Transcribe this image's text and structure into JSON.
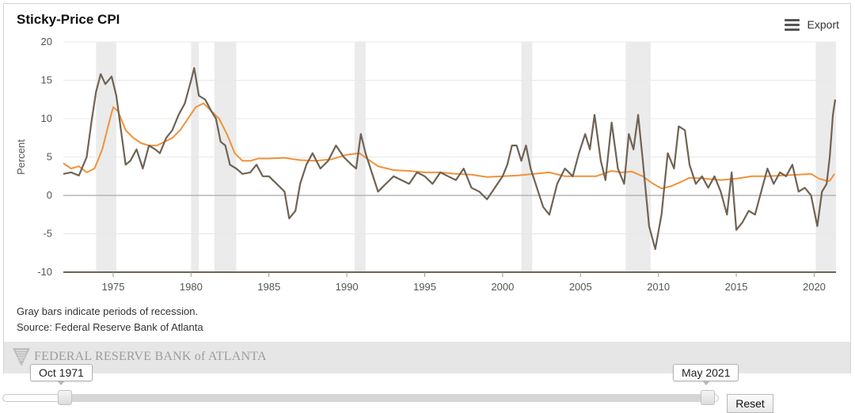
{
  "chart": {
    "title": "Sticky-Price CPI",
    "export_label": "Export",
    "note_recession": "Gray bars indicate periods of recession.",
    "note_source": "Source: Federal Reserve Bank of Atlanta"
  },
  "branding": {
    "logo_text": "FEDERAL RESERVE BANK of ATLANTA"
  },
  "range_selector": {
    "start_label": "Oct 1971",
    "end_label": "May 2021",
    "reset_label": "Reset"
  },
  "colors": {
    "series_core": "#f0923a",
    "series_flex": "#6e6354",
    "recession": "#ebebeb",
    "zero_line": "#b5b5b5",
    "axis": "#6e6354"
  },
  "chart_data": {
    "type": "line",
    "title": "Sticky-Price CPI",
    "xlabel": "",
    "ylabel": "Percent",
    "xlim": [
      1971.8,
      2021.4
    ],
    "ylim": [
      -10,
      20
    ],
    "yticks": [
      -10,
      -5,
      0,
      5,
      10,
      15,
      20
    ],
    "xticks": [
      1975,
      1980,
      1985,
      1990,
      1995,
      2000,
      2005,
      2010,
      2015,
      2020
    ],
    "grid": true,
    "legend": "none",
    "recessions": [
      [
        1973.9,
        1975.2
      ],
      [
        1980.0,
        1980.5
      ],
      [
        1981.5,
        1982.9
      ],
      [
        1990.5,
        1991.2
      ],
      [
        2001.2,
        2001.9
      ],
      [
        2007.9,
        2009.5
      ],
      [
        2020.1,
        2021.4
      ]
    ],
    "series": [
      {
        "x": [
          1971.8,
          1972.3,
          1972.8,
          1973.3,
          1973.8,
          1974.3,
          1974.8,
          1975.0,
          1975.3,
          1975.8,
          1976.3,
          1976.8,
          1977.3,
          1977.8,
          1978.3,
          1978.8,
          1979.3,
          1979.8,
          1980.3,
          1980.8,
          1981.3,
          1981.8,
          1982.3,
          1982.8,
          1983.3,
          1983.8,
          1984.3,
          1985,
          1986,
          1987,
          1988,
          1989,
          1990,
          1990.8,
          1991.5,
          1992,
          1993,
          1994,
          1995,
          1996,
          1997,
          1998,
          1999,
          2000,
          2001,
          2002,
          2003,
          2004,
          2005,
          2006,
          2007,
          2007.6,
          2008.3,
          2009,
          2009.6,
          2010.2,
          2010.8,
          2011.5,
          2012,
          2013,
          2014,
          2015,
          2016,
          2017,
          2018,
          2019,
          2019.8,
          2020.3,
          2020.8,
          2021.0,
          2021.3
        ],
        "y": [
          4.2,
          3.5,
          3.8,
          3.0,
          3.5,
          6.0,
          10.0,
          11.5,
          11.0,
          8.5,
          7.5,
          6.8,
          6.5,
          6.5,
          7.0,
          7.5,
          8.5,
          10.0,
          11.5,
          12.0,
          11.0,
          10.0,
          8.0,
          5.5,
          4.5,
          4.5,
          4.8,
          4.8,
          4.9,
          4.6,
          4.5,
          4.7,
          5.3,
          5.5,
          4.5,
          3.8,
          3.3,
          3.2,
          3.0,
          3.0,
          2.8,
          2.7,
          2.4,
          2.5,
          2.6,
          2.8,
          3.0,
          2.5,
          2.5,
          2.5,
          3.2,
          3.0,
          3.1,
          2.5,
          1.6,
          0.9,
          1.2,
          1.8,
          2.3,
          2.2,
          2.0,
          2.2,
          2.5,
          2.5,
          2.6,
          2.7,
          2.8,
          2.2,
          1.9,
          1.9,
          2.8
        ]
      },
      {
        "x": [
          1971.8,
          1972.3,
          1972.8,
          1973.3,
          1973.6,
          1973.9,
          1974.2,
          1974.5,
          1974.9,
          1975.2,
          1975.5,
          1975.8,
          1976.1,
          1976.5,
          1976.9,
          1977.3,
          1977.7,
          1978.0,
          1978.4,
          1978.8,
          1979.2,
          1979.6,
          1980.0,
          1980.2,
          1980.5,
          1980.9,
          1981.3,
          1981.6,
          1981.9,
          1982.2,
          1982.5,
          1982.9,
          1983.3,
          1983.8,
          1984.2,
          1984.6,
          1985.0,
          1985.5,
          1986.0,
          1986.3,
          1986.7,
          1987.0,
          1987.4,
          1987.8,
          1988.3,
          1988.8,
          1989.3,
          1989.8,
          1990.3,
          1990.6,
          1990.9,
          1991.2,
          1991.6,
          1992.0,
          1992.5,
          1993.0,
          1993.5,
          1994.0,
          1994.5,
          1995.0,
          1995.5,
          1996.0,
          1996.5,
          1997.0,
          1997.5,
          1998.0,
          1998.5,
          1999.0,
          1999.5,
          2000.0,
          2000.3,
          2000.6,
          2000.9,
          2001.2,
          2001.5,
          2001.8,
          2002.2,
          2002.6,
          2003.0,
          2003.5,
          2004.0,
          2004.5,
          2004.9,
          2005.3,
          2005.6,
          2005.9,
          2006.3,
          2006.6,
          2007.0,
          2007.4,
          2007.8,
          2008.1,
          2008.4,
          2008.7,
          2009.0,
          2009.4,
          2009.8,
          2010.2,
          2010.6,
          2011.0,
          2011.3,
          2011.7,
          2012.0,
          2012.4,
          2012.8,
          2013.2,
          2013.6,
          2014.0,
          2014.4,
          2014.7,
          2015.0,
          2015.4,
          2015.8,
          2016.2,
          2016.6,
          2017.0,
          2017.4,
          2017.8,
          2018.2,
          2018.6,
          2019.0,
          2019.4,
          2019.8,
          2020.2,
          2020.5,
          2020.8,
          2021.0,
          2021.2,
          2021.35
        ],
        "y": [
          2.8,
          3.0,
          2.6,
          5.0,
          9.5,
          13.5,
          15.8,
          14.5,
          15.5,
          13.0,
          8.5,
          4.0,
          4.5,
          6.0,
          3.5,
          6.5,
          6.0,
          5.5,
          7.5,
          8.5,
          10.5,
          12.0,
          15.0,
          16.6,
          13.0,
          12.5,
          11.0,
          10.0,
          7.0,
          6.5,
          4.0,
          3.5,
          2.8,
          3.0,
          4.0,
          2.5,
          2.5,
          1.5,
          0.5,
          -3.0,
          -2.0,
          1.5,
          4.0,
          5.5,
          3.5,
          4.5,
          6.5,
          5.0,
          4.0,
          3.5,
          8.0,
          5.5,
          3.0,
          0.5,
          1.5,
          2.5,
          2.0,
          1.5,
          3.0,
          2.5,
          1.5,
          3.0,
          2.5,
          2.0,
          3.5,
          1.0,
          0.5,
          -0.5,
          1.0,
          2.5,
          4.0,
          6.5,
          6.5,
          4.5,
          6.5,
          3.5,
          1.0,
          -1.5,
          -2.5,
          1.5,
          3.5,
          2.5,
          5.5,
          8.0,
          6.0,
          10.5,
          4.5,
          2.0,
          9.5,
          3.5,
          1.5,
          8.0,
          6.0,
          10.5,
          4.5,
          -4.0,
          -7.0,
          -2.5,
          5.5,
          3.5,
          9.0,
          8.5,
          4.0,
          1.5,
          2.5,
          1.0,
          2.5,
          0.5,
          -2.5,
          3.0,
          -4.5,
          -3.5,
          -2.0,
          -2.5,
          0.5,
          3.5,
          1.5,
          3.0,
          2.5,
          4.0,
          0.5,
          1.0,
          0.0,
          -4.0,
          0.5,
          1.5,
          5.0,
          10.5,
          12.5
        ]
      }
    ]
  }
}
